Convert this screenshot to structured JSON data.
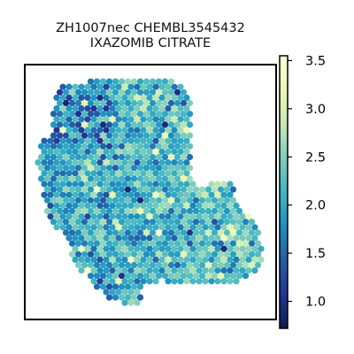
{
  "chart_data": {
    "type": "heatmap",
    "title_lines": [
      "ZH1007nec CHEMBL3545432",
      "IXAZOMIB CITRATE"
    ],
    "xlabel": "",
    "ylabel": "",
    "colorbar": {
      "range": [
        0.72,
        3.55
      ],
      "ticks": [
        1.0,
        1.5,
        2.0,
        2.5,
        3.0,
        3.5
      ],
      "tick_labels": [
        "1.0",
        "1.5",
        "2.0",
        "2.5",
        "3.0",
        "3.5"
      ],
      "colormap": "YlGnBu_r"
    },
    "spot_value_distribution": {
      "typical_range": [
        1.5,
        3.0
      ],
      "center": 2.1,
      "low_extreme": 0.85,
      "high_extreme": 3.4
    }
  }
}
